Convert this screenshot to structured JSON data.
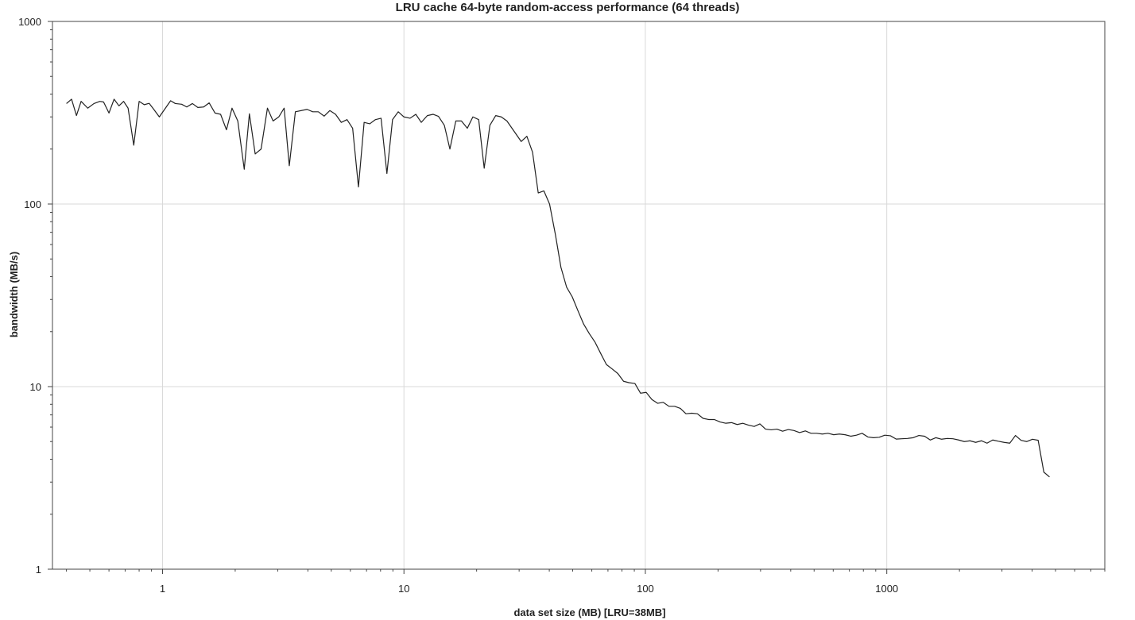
{
  "chart_data": {
    "type": "line",
    "title": "LRU cache 64-byte random-access performance (64 threads)",
    "xlabel": "data set size (MB) [LRU=38MB]",
    "ylabel": "bandwidth (MB/s)",
    "xscale": "log",
    "yscale": "log",
    "xlim": [
      0.35,
      8000
    ],
    "ylim": [
      1,
      1000
    ],
    "x_ticks": [
      1,
      10,
      100,
      1000
    ],
    "x_tick_labels": [
      "1",
      "10",
      "100",
      "1000"
    ],
    "y_ticks": [
      1,
      10,
      100,
      1000
    ],
    "y_tick_labels": [
      "1",
      "10",
      "100",
      "1000"
    ],
    "grid": true,
    "legend": "none",
    "series": [
      {
        "color": "#222222",
        "points": [
          [
            0.4,
            355
          ],
          [
            0.42,
            375
          ],
          [
            0.44,
            305
          ],
          [
            0.46,
            365
          ],
          [
            0.49,
            335
          ],
          [
            0.52,
            355
          ],
          [
            0.55,
            365
          ],
          [
            0.57,
            362
          ],
          [
            0.6,
            315
          ],
          [
            0.63,
            375
          ],
          [
            0.66,
            345
          ],
          [
            0.69,
            365
          ],
          [
            0.72,
            335
          ],
          [
            0.76,
            210
          ],
          [
            0.8,
            365
          ],
          [
            0.84,
            350
          ],
          [
            0.88,
            356
          ],
          [
            0.92,
            330
          ],
          [
            0.97,
            300
          ],
          [
            1.02,
            330
          ],
          [
            1.08,
            368
          ],
          [
            1.13,
            355
          ],
          [
            1.2,
            352
          ],
          [
            1.26,
            340
          ],
          [
            1.33,
            355
          ],
          [
            1.4,
            338
          ],
          [
            1.48,
            340
          ],
          [
            1.56,
            358
          ],
          [
            1.65,
            315
          ],
          [
            1.74,
            310
          ],
          [
            1.84,
            255
          ],
          [
            1.94,
            335
          ],
          [
            2.05,
            285
          ],
          [
            2.18,
            155
          ],
          [
            2.29,
            312
          ],
          [
            2.42,
            188
          ],
          [
            2.56,
            200
          ],
          [
            2.72,
            335
          ],
          [
            2.87,
            285
          ],
          [
            3.03,
            300
          ],
          [
            3.19,
            335
          ],
          [
            3.35,
            162
          ],
          [
            3.55,
            320
          ],
          [
            3.76,
            325
          ],
          [
            3.97,
            330
          ],
          [
            4.19,
            320
          ],
          [
            4.42,
            320
          ],
          [
            4.67,
            303
          ],
          [
            4.93,
            325
          ],
          [
            5.21,
            310
          ],
          [
            5.5,
            280
          ],
          [
            5.81,
            290
          ],
          [
            6.13,
            260
          ],
          [
            6.48,
            124
          ],
          [
            6.84,
            280
          ],
          [
            7.22,
            275
          ],
          [
            7.62,
            290
          ],
          [
            8.04,
            295
          ],
          [
            8.5,
            147
          ],
          [
            8.97,
            290
          ],
          [
            9.47,
            320
          ],
          [
            10.0,
            300
          ],
          [
            10.6,
            295
          ],
          [
            11.2,
            310
          ],
          [
            11.8,
            280
          ],
          [
            12.5,
            305
          ],
          [
            13.2,
            310
          ],
          [
            13.9,
            302
          ],
          [
            14.7,
            270
          ],
          [
            15.5,
            200
          ],
          [
            16.4,
            285
          ],
          [
            17.3,
            285
          ],
          [
            18.3,
            260
          ],
          [
            19.3,
            300
          ],
          [
            20.4,
            290
          ],
          [
            21.5,
            157
          ],
          [
            22.7,
            270
          ],
          [
            24.0,
            305
          ],
          [
            25.3,
            300
          ],
          [
            26.7,
            285
          ],
          [
            30.6,
            220
          ],
          [
            32.3,
            235
          ],
          [
            34.1,
            192
          ],
          [
            36.0,
            115
          ],
          [
            38.0,
            118
          ],
          [
            40.1,
            100
          ],
          [
            42.4,
            68
          ],
          [
            44.7,
            45
          ],
          [
            47.2,
            35
          ],
          [
            49.8,
            31
          ],
          [
            52.6,
            26
          ],
          [
            55.5,
            22
          ],
          [
            58.6,
            19.5
          ],
          [
            61.9,
            17.5
          ],
          [
            65.3,
            15.2
          ],
          [
            69.0,
            13.2
          ],
          [
            72.8,
            12.5
          ],
          [
            76.9,
            11.8
          ],
          [
            81.2,
            10.7
          ],
          [
            85.7,
            10.5
          ],
          [
            90.5,
            10.4
          ],
          [
            95.5,
            9.2
          ],
          [
            100.8,
            9.3
          ],
          [
            106.4,
            8.5
          ],
          [
            112.4,
            8.1
          ],
          [
            118.6,
            8.2
          ],
          [
            125.2,
            7.8
          ],
          [
            132.2,
            7.8
          ],
          [
            139.6,
            7.6
          ],
          [
            147.3,
            7.1
          ],
          [
            155.6,
            7.15
          ],
          [
            164.2,
            7.1
          ],
          [
            173.4,
            6.7
          ],
          [
            183.0,
            6.6
          ],
          [
            193.2,
            6.6
          ],
          [
            204.0,
            6.4
          ],
          [
            215.4,
            6.3
          ],
          [
            227.4,
            6.35
          ],
          [
            240.0,
            6.2
          ],
          [
            253.4,
            6.3
          ],
          [
            267.5,
            6.15
          ],
          [
            282.4,
            6.05
          ],
          [
            298.1,
            6.25
          ],
          [
            314.7,
            5.85
          ],
          [
            332.2,
            5.8
          ],
          [
            350.7,
            5.85
          ],
          [
            370.2,
            5.7
          ],
          [
            390.8,
            5.82
          ],
          [
            412.6,
            5.75
          ],
          [
            435.5,
            5.6
          ],
          [
            459.8,
            5.72
          ],
          [
            485.4,
            5.55
          ],
          [
            512.4,
            5.55
          ],
          [
            540.9,
            5.5
          ],
          [
            571.0,
            5.55
          ],
          [
            602.8,
            5.45
          ],
          [
            636.4,
            5.5
          ],
          [
            671.8,
            5.45
          ],
          [
            709.2,
            5.35
          ],
          [
            748.7,
            5.42
          ],
          [
            790.4,
            5.55
          ],
          [
            834.4,
            5.3
          ],
          [
            880.8,
            5.25
          ],
          [
            929.9,
            5.28
          ],
          [
            981.6,
            5.42
          ],
          [
            1036,
            5.38
          ],
          [
            1094,
            5.16
          ],
          [
            1155,
            5.18
          ],
          [
            1219,
            5.2
          ],
          [
            1287,
            5.25
          ],
          [
            1358,
            5.4
          ],
          [
            1434,
            5.35
          ],
          [
            1514,
            5.1
          ],
          [
            1598,
            5.25
          ],
          [
            1687,
            5.15
          ],
          [
            1781,
            5.2
          ],
          [
            1880,
            5.18
          ],
          [
            1985,
            5.1
          ],
          [
            2095,
            5.0
          ],
          [
            2212,
            5.05
          ],
          [
            2335,
            4.95
          ],
          [
            2465,
            5.05
          ],
          [
            2602,
            4.9
          ],
          [
            2747,
            5.1
          ],
          [
            2900,
            5.02
          ],
          [
            3061,
            4.95
          ],
          [
            3232,
            4.9
          ],
          [
            3412,
            5.4
          ],
          [
            3601,
            5.08
          ],
          [
            3802,
            5.0
          ],
          [
            4014,
            5.15
          ],
          [
            4237,
            5.08
          ],
          [
            4473,
            3.4
          ],
          [
            4722,
            3.2
          ]
        ]
      }
    ]
  }
}
